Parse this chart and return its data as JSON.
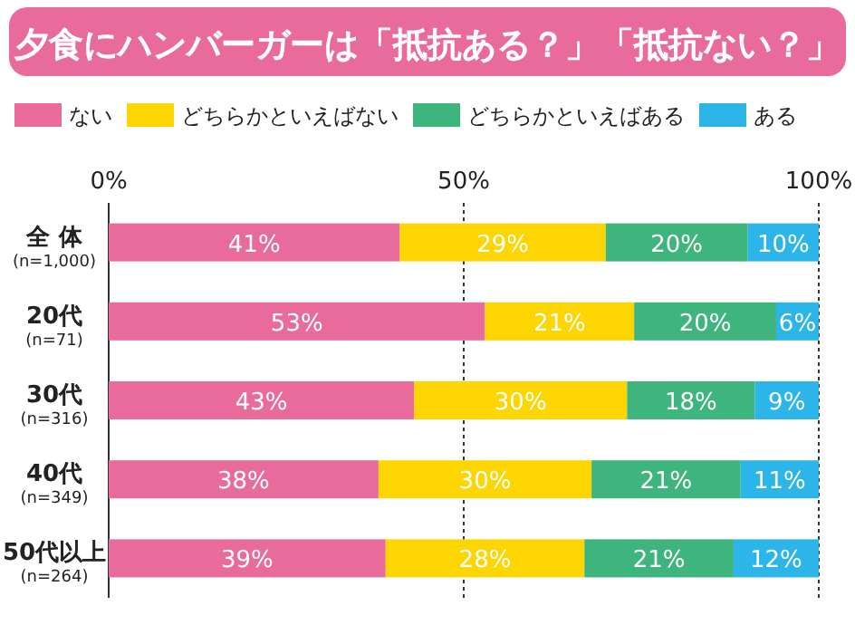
{
  "chart_data": {
    "type": "bar",
    "orientation": "horizontal",
    "stacked": true,
    "title": "夕食にハンバーガーは「抵抗ある？」「抵抗ない？」",
    "categories": [
      "全 体\n(n=1,000)",
      "20代\n(n=71)",
      "30代\n(n=316)",
      "40代\n(n=349)",
      "50代以上\n(n=264)"
    ],
    "series": [
      {
        "name": "ない",
        "color": "#e96b9b",
        "values": [
          41,
          53,
          43,
          38,
          39
        ],
        "value_labels": [
          "41%",
          "53%",
          "43%",
          "38%",
          "39%"
        ]
      },
      {
        "name": "どちらかといえばない",
        "color": "#fdd500",
        "values": [
          29,
          21,
          30,
          30,
          28
        ],
        "value_labels": [
          "29%",
          "21%",
          "30%",
          "30%",
          "28%"
        ]
      },
      {
        "name": "どちらかといえばある",
        "color": "#3db57c",
        "values": [
          20,
          20,
          18,
          21,
          21
        ],
        "value_labels": [
          "20%",
          "20%",
          "18%",
          "21%",
          "21%"
        ]
      },
      {
        "name": "ある",
        "color": "#2cb5e8",
        "values": [
          10,
          6,
          9,
          11,
          12
        ],
        "value_labels": [
          "10%",
          "6%",
          "9%",
          "11%",
          "12%"
        ]
      }
    ],
    "xlim": [
      0,
      100
    ],
    "xticks": [
      {
        "value": 0,
        "label": "0%"
      },
      {
        "value": 50,
        "label": "50%"
      },
      {
        "value": 100,
        "label": "100%"
      }
    ],
    "grid": "x",
    "legend": "top"
  }
}
